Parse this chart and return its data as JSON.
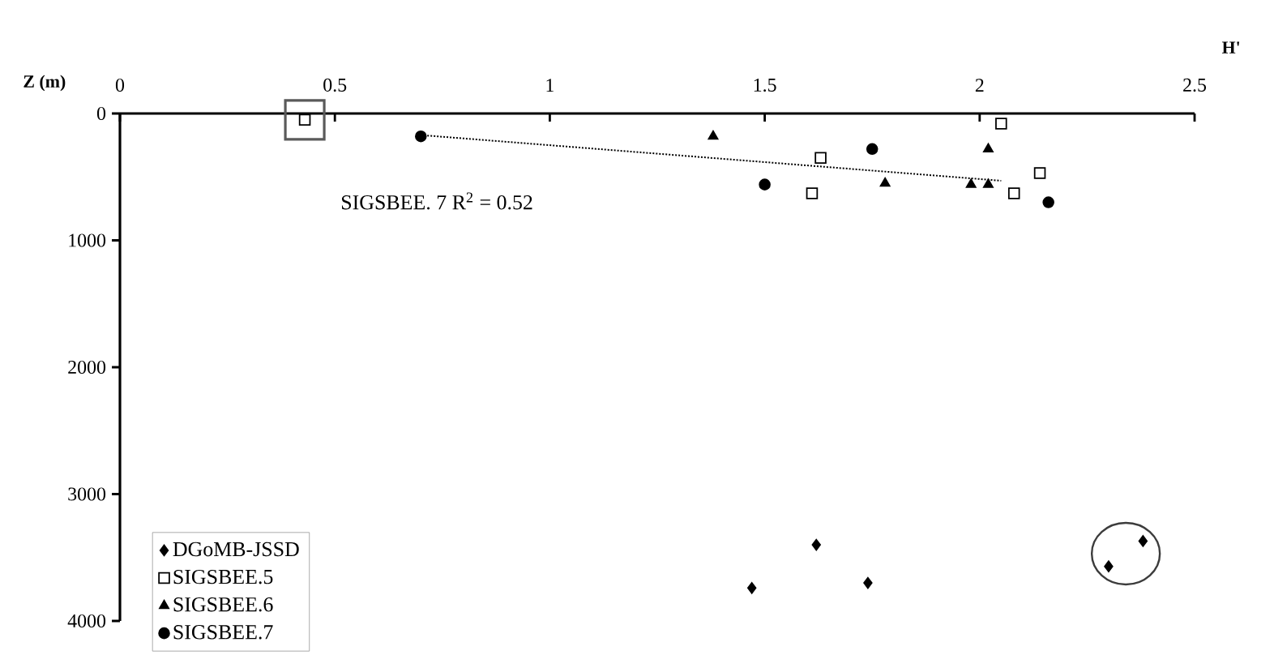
{
  "chart_data": {
    "type": "scatter",
    "xlabel": "H'",
    "ylabel": "Z (m)",
    "xlim": [
      0,
      2.5
    ],
    "xticks": [
      0,
      0.5,
      1,
      1.5,
      2,
      2.5
    ],
    "ylim": [
      4000,
      0
    ],
    "yticks": [
      0,
      1000,
      2000,
      3000,
      4000
    ],
    "legend": "bottom left",
    "annotations": [
      "SIGSBEE. 7  R$^{2}$ = 0.52"
    ],
    "series": [
      {
        "name": "DGoMB-JSSD",
        "marker": "diamond",
        "color": "#000000",
        "x": [
          1.47,
          1.62,
          1.74,
          2.3,
          2.38
        ],
        "values": [
          3740,
          3400,
          3700,
          3570,
          3370
        ]
      },
      {
        "name": "SIGSBEE.5",
        "marker": "square",
        "color": "#000000",
        "x": [
          0.43,
          2.05,
          1.63,
          1.61,
          2.08,
          2.14
        ],
        "values": [
          50,
          80,
          350,
          630,
          630,
          470
        ]
      },
      {
        "name": "SIGSBEE.6",
        "marker": "triangle",
        "color": "#000000",
        "x": [
          1.38,
          2.02,
          1.78,
          1.98,
          2.02
        ],
        "values": [
          180,
          280,
          550,
          560,
          560
        ]
      },
      {
        "name": "SIGSBEE.7",
        "marker": "circle",
        "color": "#000000",
        "x": [
          0.7,
          1.75,
          1.5,
          2.16
        ],
        "values": [
          180,
          280,
          560,
          700
        ]
      },
      {
        "type": "line",
        "line_style": "dotted",
        "color": "#000000",
        "x": [
          0.7,
          2.05
        ],
        "values": [
          170,
          530
        ]
      }
    ]
  }
}
